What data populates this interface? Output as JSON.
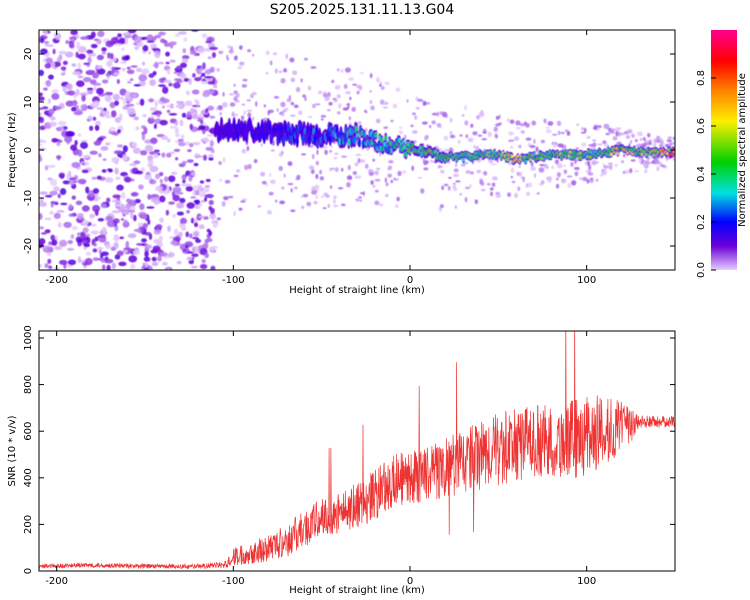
{
  "chart_data": [
    {
      "type": "heatmap",
      "title": "S205.2025.131.11.13.G04",
      "xlabel": "Height of straight line (km)",
      "ylabel": "Frequency (Hz)",
      "xlim": [
        -210,
        150
      ],
      "ylim": [
        -25,
        25
      ],
      "x_ticks": [
        -200,
        -100,
        0,
        100
      ],
      "y_ticks": [
        -20,
        -10,
        0,
        10,
        20
      ],
      "colorbar": {
        "label": "Normalized spectral amplitude",
        "range": [
          0,
          1
        ],
        "ticks": [
          0.0,
          0.2,
          0.4,
          0.6,
          0.8
        ],
        "colormap": [
          "#e6ccff",
          "#6a00d8",
          "#0000ff",
          "#00e0e0",
          "#00d000",
          "#ffee00",
          "#ff8000",
          "#ff0000",
          "#ff0090"
        ]
      },
      "noise_region_x": [
        -210,
        -110
      ],
      "ridge": {
        "x": [
          -110,
          -90,
          -70,
          -50,
          -30,
          -10,
          0,
          10,
          20,
          30,
          40,
          50,
          60,
          70,
          80,
          90,
          100,
          110,
          120,
          130,
          145
        ],
        "freq": [
          4,
          4,
          3.5,
          3,
          3,
          1,
          0.5,
          -0.5,
          -1.5,
          -1.5,
          -1,
          -1,
          -2,
          -1.5,
          -1,
          -1,
          -1,
          -0.5,
          0,
          -0.5,
          -0.5
        ],
        "amplitude": [
          0.2,
          0.25,
          0.3,
          0.35,
          0.45,
          0.5,
          0.55,
          0.6,
          0.6,
          0.55,
          0.6,
          0.6,
          0.75,
          0.6,
          0.6,
          0.65,
          0.6,
          0.6,
          0.75,
          0.6,
          0.85
        ]
      }
    },
    {
      "type": "line",
      "xlabel": "Height of straight line (km)",
      "ylabel": "SNR (10 * v/v)",
      "xlim": [
        -210,
        150
      ],
      "ylim": [
        0,
        1030
      ],
      "x_ticks": [
        -200,
        -100,
        0,
        100
      ],
      "y_ticks": [
        0,
        200,
        400,
        600,
        800,
        1000
      ],
      "color": "#ee3333",
      "x": [
        -210,
        -180,
        -150,
        -120,
        -105,
        -100,
        -90,
        -80,
        -70,
        -60,
        -50,
        -40,
        -30,
        -20,
        -10,
        0,
        10,
        20,
        30,
        40,
        50,
        60,
        70,
        80,
        90,
        100,
        110,
        120,
        130,
        140,
        150
      ],
      "y": [
        20,
        25,
        20,
        20,
        25,
        60,
        80,
        100,
        130,
        180,
        230,
        250,
        280,
        330,
        380,
        400,
        420,
        440,
        470,
        500,
        520,
        540,
        560,
        550,
        560,
        580,
        600,
        610,
        640,
        640,
        640
      ],
      "y_spread": [
        10,
        10,
        10,
        10,
        15,
        40,
        50,
        60,
        70,
        80,
        90,
        90,
        100,
        110,
        120,
        120,
        120,
        130,
        140,
        150,
        160,
        160,
        160,
        160,
        170,
        180,
        150,
        120,
        30,
        25,
        25
      ]
    }
  ]
}
